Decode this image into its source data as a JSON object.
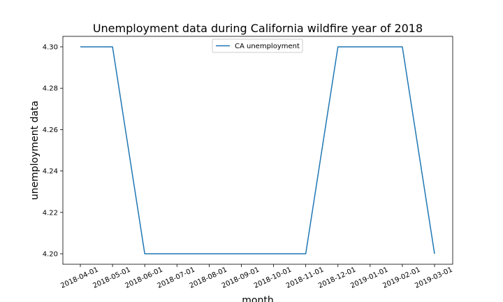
{
  "chart_data": {
    "type": "line",
    "title": "Unemployment data during California wildfire year of 2018",
    "xlabel": "month",
    "ylabel": "unemployment data",
    "x": [
      "2018-04-01",
      "2018-05-01",
      "2018-06-01",
      "2018-07-01",
      "2018-08-01",
      "2018-09-01",
      "2018-10-01",
      "2018-11-01",
      "2018-12-01",
      "2019-01-01",
      "2019-02-01",
      "2019-03-01"
    ],
    "series": [
      {
        "name": "CA unemployment",
        "color": "#1f77b4",
        "values": [
          4.3,
          4.3,
          4.2,
          4.2,
          4.2,
          4.2,
          4.2,
          4.2,
          4.3,
          4.3,
          4.3,
          4.2
        ]
      }
    ],
    "yticks": [
      "4.20",
      "4.22",
      "4.24",
      "4.26",
      "4.28",
      "4.30"
    ],
    "ylim": [
      4.195,
      4.305
    ],
    "grid": false,
    "legend": "upper center"
  }
}
